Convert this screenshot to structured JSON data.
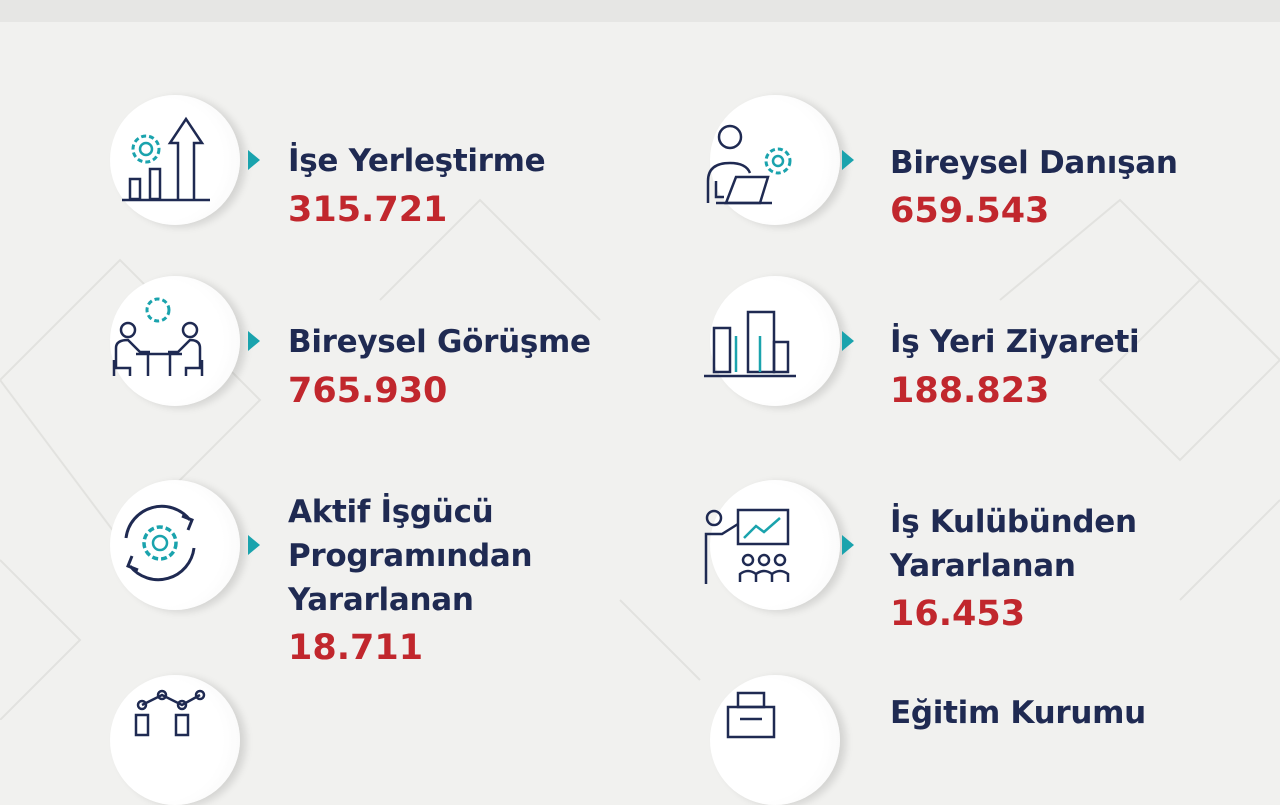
{
  "colors": {
    "title": "#1f2a52",
    "value": "#c1272d",
    "accent": "#1aa3ad",
    "background": "#f1f1ef"
  },
  "stats": [
    {
      "icon": "gear-growth-chart-icon",
      "title_lines": [
        "İşe Yerleştirme"
      ],
      "value": "315.721"
    },
    {
      "icon": "consultant-laptop-gear-icon",
      "title_lines": [
        "Bireysel Danışan"
      ],
      "value": "659.543"
    },
    {
      "icon": "meeting-table-icon",
      "title_lines": [
        "Bireysel Görüşme"
      ],
      "value": "765.930"
    },
    {
      "icon": "buildings-icon",
      "title_lines": [
        "İş Yeri Ziyareti"
      ],
      "value": "188.823"
    },
    {
      "icon": "gear-cycle-icon",
      "title_lines": [
        "Aktif İşgücü",
        "Programından",
        "Yararlanan"
      ],
      "value": "18.711"
    },
    {
      "icon": "presentation-group-icon",
      "title_lines": [
        "İş Kulübünden",
        "Yararlanan"
      ],
      "value": "16.453"
    },
    {
      "icon": "network-icon",
      "title_lines": [],
      "value": null
    },
    {
      "icon": "printer-icon",
      "title_lines": [
        "Eğitim Kurumu"
      ],
      "value": null
    }
  ]
}
